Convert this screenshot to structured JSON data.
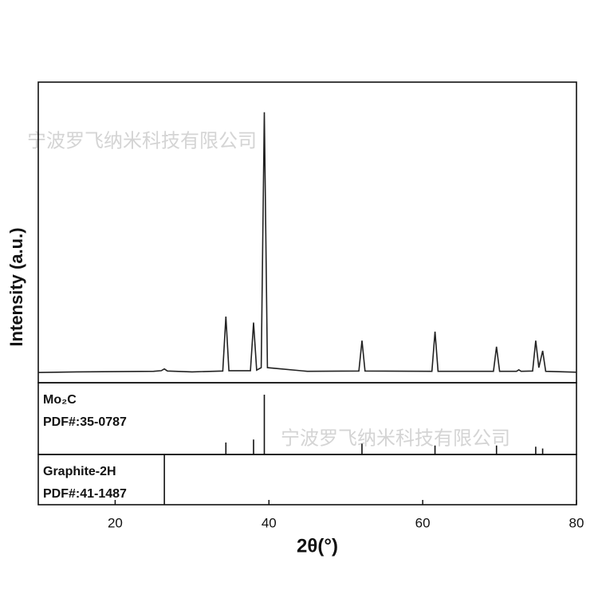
{
  "chart_data": [
    {
      "type": "line",
      "ylabel": "Intensity (a.u.)",
      "color": "#222222",
      "xlim": [
        10,
        80
      ],
      "ylim": [
        0,
        100
      ],
      "x": [
        10,
        15,
        20,
        25,
        26.0,
        26.4,
        26.8,
        30,
        34.0,
        34.4,
        34.8,
        37.6,
        38.0,
        38.4,
        39.0,
        39.4,
        39.8,
        45,
        51.7,
        52.1,
        52.5,
        61.2,
        61.6,
        62.0,
        69.2,
        69.6,
        70.0,
        72.2,
        72.5,
        72.8,
        74.3,
        74.7,
        75.1,
        75.6,
        76.0,
        80
      ],
      "values": [
        3.4,
        3.6,
        3.7,
        3.8,
        4.0,
        4.6,
        3.9,
        3.6,
        3.9,
        22,
        4.0,
        4.0,
        20,
        4.2,
        5,
        90,
        5,
        3.8,
        3.9,
        14,
        3.9,
        3.8,
        17,
        3.8,
        3.8,
        12,
        3.8,
        3.8,
        4.3,
        3.8,
        3.9,
        14,
        5,
        10.6,
        3.8,
        3.5
      ],
      "annotations": [
        "宁波罗飞纳米科技有限公司",
        "宁波罗飞纳米科技有限公司"
      ]
    },
    {
      "type": "stick",
      "label": "Mo₂C",
      "card": "PDF#:35-0787",
      "color": "#111111",
      "xlim": [
        10,
        80
      ],
      "ylim": [
        0,
        120
      ],
      "x": [
        34.4,
        38.0,
        39.4,
        52.1,
        61.6,
        69.6,
        74.7,
        75.6
      ],
      "values": [
        20,
        25,
        100,
        18,
        15,
        15,
        13,
        10
      ]
    },
    {
      "type": "stick",
      "label": "Graphite-2H",
      "card": "PDF#:41-1487",
      "color": "#111111",
      "xlim": [
        10,
        80
      ],
      "ylim": [
        0,
        100
      ],
      "x": [
        26.4
      ],
      "values": [
        100
      ],
      "xlabel": "2θ(°)",
      "xticks": [
        20,
        40,
        60,
        80
      ]
    }
  ]
}
